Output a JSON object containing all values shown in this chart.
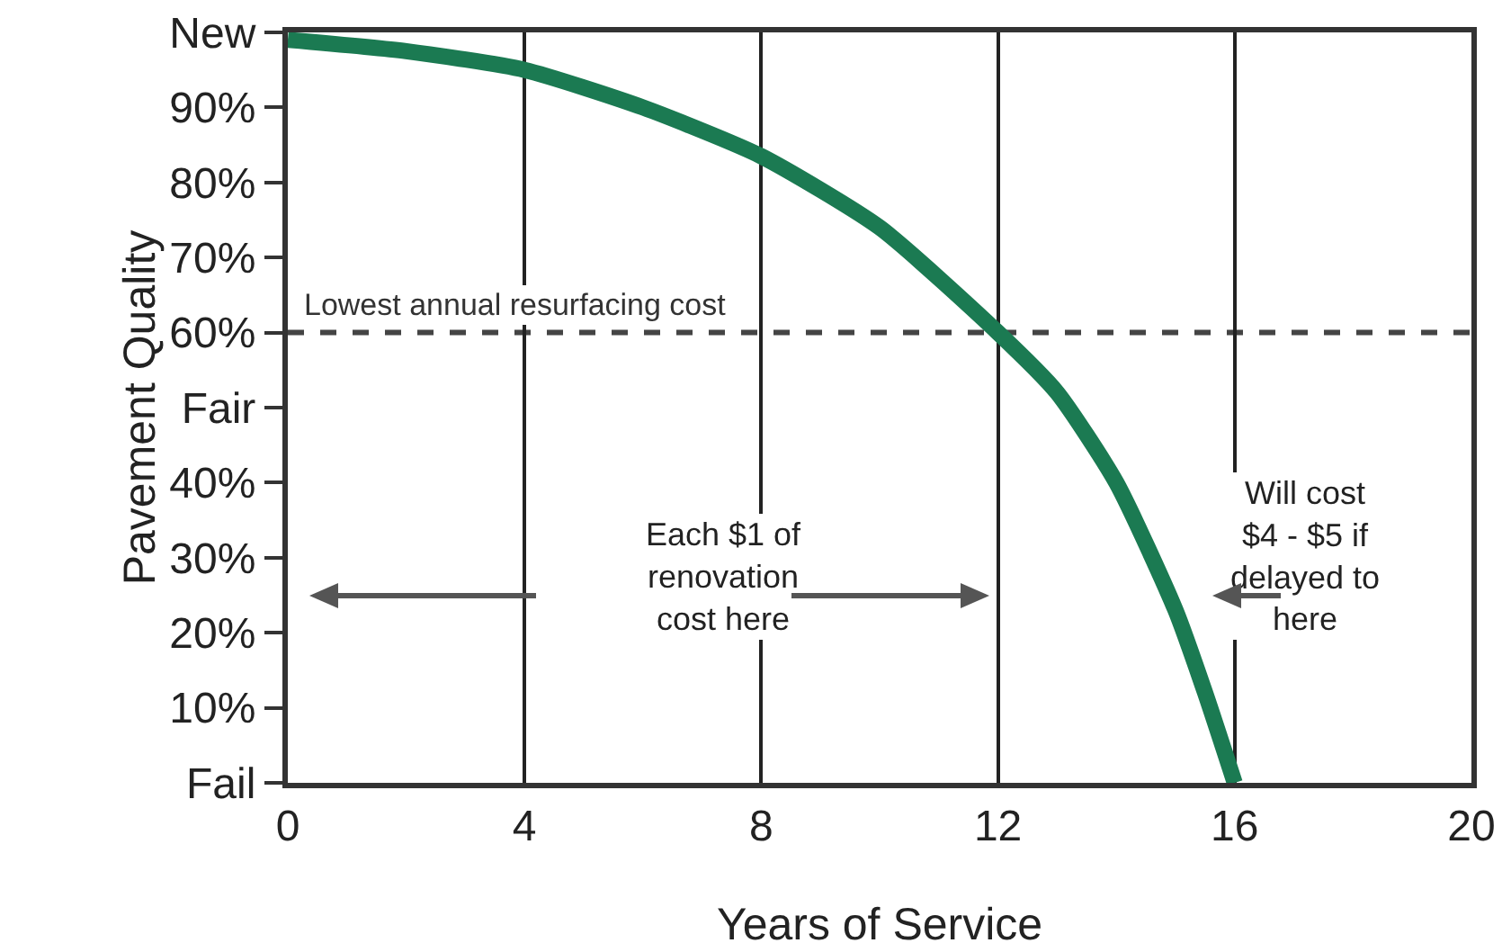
{
  "chart_data": {
    "type": "line",
    "xlabel": "Years of Service",
    "ylabel": "Pavement Quality",
    "x": [
      0,
      2,
      4,
      6,
      8,
      10,
      12,
      13,
      14,
      15,
      15.5,
      16
    ],
    "series": [
      {
        "color": "#1b7a52",
        "values": [
          99,
          97.5,
          95,
          90,
          83.5,
          74,
          60,
          52,
          40,
          23,
          12,
          0
        ]
      }
    ],
    "xlim": [
      0,
      20
    ],
    "xticks": [
      0,
      4,
      8,
      12,
      16,
      20
    ],
    "ylim": [
      0,
      100
    ],
    "yticks": [
      {
        "value": 0,
        "label": "Fail"
      },
      {
        "value": 10,
        "label": "10%"
      },
      {
        "value": 20,
        "label": "20%"
      },
      {
        "value": 30,
        "label": "30%"
      },
      {
        "value": 40,
        "label": "40%"
      },
      {
        "value": 50,
        "label": "Fair"
      },
      {
        "value": 60,
        "label": "60%"
      },
      {
        "value": 70,
        "label": "70%"
      },
      {
        "value": 80,
        "label": "80%"
      },
      {
        "value": 90,
        "label": "90%"
      },
      {
        "value": 100,
        "label": "New"
      }
    ],
    "grid": "x",
    "marker": "none",
    "line_style": "solid",
    "ref_lines": [
      {
        "axis": "y",
        "value": 60,
        "label": "Lowest annual resurfacing cost",
        "color": "#444444",
        "line_style": "dashed"
      }
    ],
    "annotations": [
      "Each $1 of renovation cost here",
      "Will cost $4 - $5 if delayed to here"
    ]
  }
}
